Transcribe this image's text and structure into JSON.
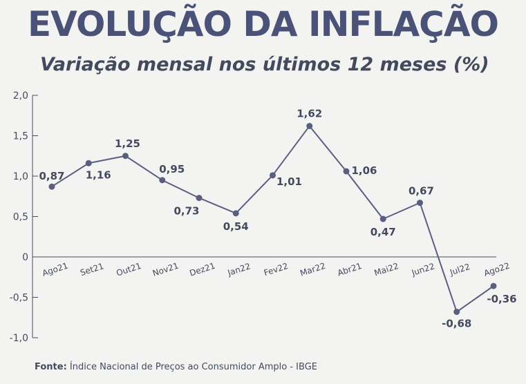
{
  "header": {
    "title": "EVOLUÇÃO DA INFLAÇÃO",
    "subtitle": "Variação mensal nos últimos 12 meses (%)"
  },
  "footer": {
    "source_label": "Fonte:",
    "source_text": "Índice Nacional de Preços ao Consumidor Amplo - IBGE"
  },
  "colors": {
    "line": "#5a5f80",
    "title": "#4b5277",
    "axis": "#444a5e"
  },
  "chart_data": {
    "type": "line",
    "title": "EVOLUÇÃO DA INFLAÇÃO",
    "subtitle": "Variação mensal nos últimos 12 meses (%)",
    "xlabel": "",
    "ylabel": "",
    "categories": [
      "Ago21",
      "Set21",
      "Out21",
      "Nov21",
      "Dez21",
      "Jan22",
      "Fev22",
      "Mar22",
      "Abr21",
      "Mai22",
      "Jun22",
      "Jul22",
      "Ago22"
    ],
    "values": [
      0.87,
      1.16,
      1.25,
      0.95,
      0.73,
      0.54,
      1.01,
      1.62,
      1.06,
      0.47,
      0.67,
      -0.68,
      -0.36
    ],
    "value_labels": [
      "0,87",
      "1,16",
      "1,25",
      "0,95",
      "0,73",
      "0,54",
      "1,01",
      "1,62",
      "1,06",
      "0,47",
      "0,67",
      "-0,68",
      "-0,36"
    ],
    "yticks": [
      2.0,
      1.5,
      1.0,
      0.5,
      0,
      -0.5,
      -1.0
    ],
    "ytick_labels": [
      "2,0",
      "1,5",
      "1,0",
      "0,5",
      "0",
      "-0,5",
      "-1,0"
    ],
    "ylim": [
      -1.0,
      2.0
    ],
    "grid": false,
    "legend": "none"
  }
}
